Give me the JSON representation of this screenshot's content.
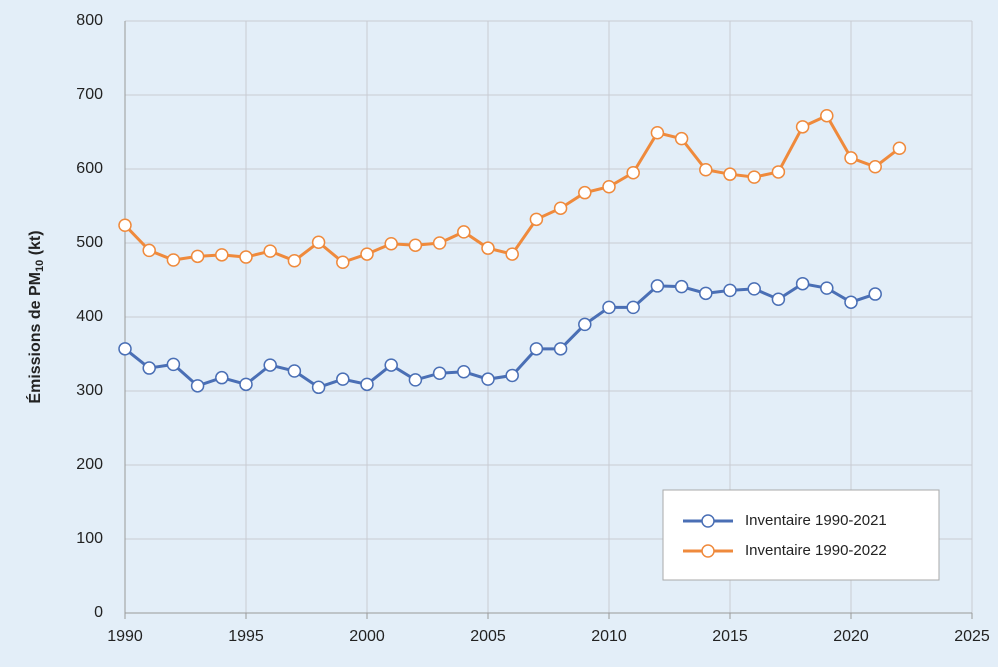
{
  "chart_data": {
    "type": "line",
    "ylabel": {
      "text": "Émissions de PM",
      "subscript": "10",
      "suffix": " (kt)"
    },
    "xlim": [
      1990,
      2025
    ],
    "xticks": [
      1990,
      1995,
      2000,
      2005,
      2010,
      2015,
      2020,
      2025
    ],
    "ylim": [
      0,
      800
    ],
    "yticks": [
      0,
      100,
      200,
      300,
      400,
      500,
      600,
      700,
      800
    ],
    "grid": true,
    "legend": "lower right",
    "series": [
      {
        "name": "Inventaire 1990-2021",
        "color": "#4a6fb5",
        "x": [
          1990,
          1991,
          1992,
          1993,
          1994,
          1995,
          1996,
          1997,
          1998,
          1999,
          2000,
          2001,
          2002,
          2003,
          2004,
          2005,
          2006,
          2007,
          2008,
          2009,
          2010,
          2011,
          2012,
          2013,
          2014,
          2015,
          2016,
          2017,
          2018,
          2019,
          2020,
          2021
        ],
        "values": [
          357,
          331,
          336,
          307,
          318,
          309,
          335,
          327,
          305,
          316,
          309,
          335,
          315,
          324,
          326,
          316,
          321,
          357,
          357,
          390,
          413,
          413,
          442,
          441,
          432,
          436,
          438,
          424,
          445,
          439,
          420,
          431
        ]
      },
      {
        "name": "Inventaire 1990-2022",
        "color": "#ef8a3c",
        "x": [
          1990,
          1991,
          1992,
          1993,
          1994,
          1995,
          1996,
          1997,
          1998,
          1999,
          2000,
          2001,
          2002,
          2003,
          2004,
          2005,
          2006,
          2007,
          2008,
          2009,
          2010,
          2011,
          2012,
          2013,
          2014,
          2015,
          2016,
          2017,
          2018,
          2019,
          2020,
          2021,
          2022
        ],
        "values": [
          524,
          490,
          477,
          482,
          484,
          481,
          489,
          476,
          501,
          474,
          485,
          499,
          497,
          500,
          515,
          493,
          485,
          532,
          547,
          568,
          576,
          595,
          649,
          641,
          599,
          593,
          589,
          596,
          657,
          672,
          615,
          603,
          628
        ]
      }
    ]
  }
}
